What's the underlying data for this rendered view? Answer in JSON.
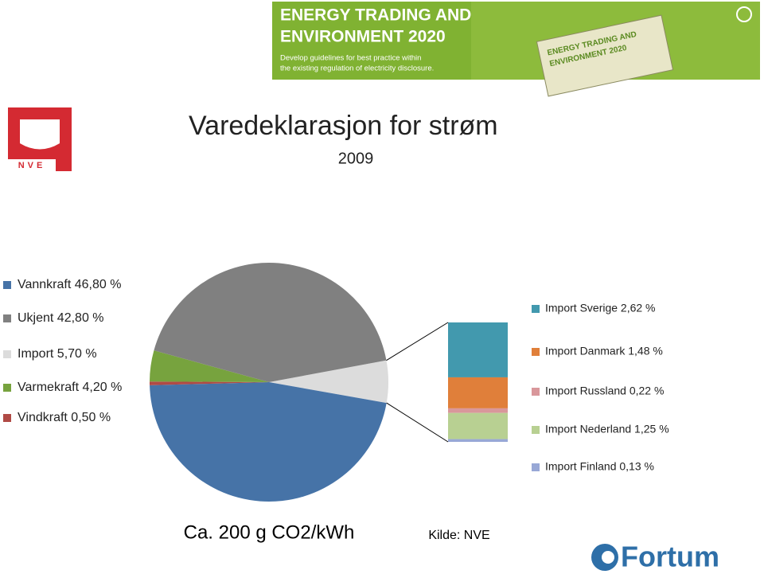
{
  "banner": {
    "title_line1": "ENERGY TRADING AND",
    "title_line2": "ENVIRONMENT 2020",
    "subtitle_line1": "Develop guidelines for best practice within",
    "subtitle_line2": "the existing regulation of electricity disclosure.",
    "tag_line1": "ENERGY TRADING AND",
    "tag_line2": "ENVIRONMENT 2020"
  },
  "logos": {
    "left": "NVE",
    "right": "Fortum"
  },
  "chart_data": [
    {
      "type": "pie",
      "title": "Varedeklarasjon for strøm",
      "subtitle": "2009",
      "categories": [
        "Vannkraft 46,80 %",
        "Ukjent 42,80 %",
        "Import 5,70 %",
        "Varmekraft 4,20 %",
        "Vindkraft 0,50 %"
      ],
      "values": [
        46.8,
        42.8,
        5.7,
        4.2,
        0.5
      ],
      "colors": [
        "#4673a7",
        "#808080",
        "#dcdcdc",
        "#77a33e",
        "#b04a45"
      ],
      "annotations": [
        "Ca. 200 g CO2/kWh",
        "Kilde: NVE"
      ]
    },
    {
      "type": "stacked-bar",
      "categories": [
        "Import Sverige 2,62 %",
        "Import Danmark 1,48 %",
        "Import Russland 0,22 %",
        "Import Nederland 1,25 %",
        "Import Finland 0,13 %"
      ],
      "values": [
        2.62,
        1.48,
        0.22,
        1.25,
        0.13
      ],
      "colors": [
        "#4299ae",
        "#e07f3a",
        "#d9979b",
        "#b8d092",
        "#98a8d6"
      ]
    }
  ]
}
